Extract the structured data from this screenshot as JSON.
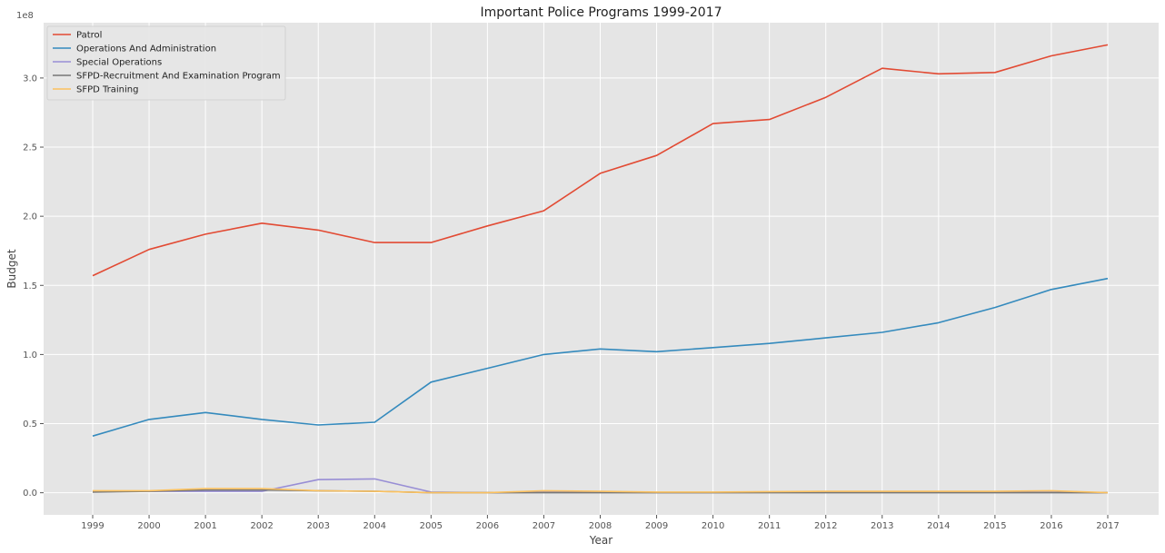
{
  "chart_data": {
    "type": "line",
    "title": "Important Police Programs 1999-2017",
    "xlabel": "Year",
    "ylabel": "Budget",
    "y_offset_label": "1e8",
    "x": [
      "1999",
      "2000",
      "2001",
      "2002",
      "2003",
      "2004",
      "2005",
      "2006",
      "2007",
      "2008",
      "2009",
      "2010",
      "2011",
      "2012",
      "2013",
      "2014",
      "2015",
      "2016",
      "2017"
    ],
    "y_ticks": [
      0,
      50000000,
      100000000,
      150000000,
      200000000,
      250000000,
      300000000
    ],
    "y_tick_labels": [
      "0.0",
      "0.5",
      "1.0",
      "1.5",
      "2.0",
      "2.5",
      "3.0"
    ],
    "ylim": [
      -16000000,
      340000000
    ],
    "grid": true,
    "legend_position": "top-left",
    "series": [
      {
        "name": "Patrol",
        "color": "#E24A33",
        "values": [
          157000000,
          176000000,
          187000000,
          195000000,
          190000000,
          181000000,
          181000000,
          193000000,
          204000000,
          231000000,
          244000000,
          267000000,
          270000000,
          286000000,
          307000000,
          303000000,
          304000000,
          316000000,
          324000000
        ]
      },
      {
        "name": "Operations And Administration",
        "color": "#348ABD",
        "values": [
          41000000,
          53000000,
          58000000,
          53000000,
          49000000,
          51000000,
          80000000,
          90000000,
          100000000,
          104000000,
          102000000,
          105000000,
          108000000,
          112000000,
          116000000,
          123000000,
          134000000,
          147000000,
          155000000
        ]
      },
      {
        "name": "Special Operations",
        "color": "#988ED5",
        "values": [
          1000000,
          1000000,
          1000000,
          1000000,
          9500000,
          10000000,
          500000,
          0,
          500000,
          300000,
          200000,
          200000,
          300000,
          300000,
          300000,
          300000,
          300000,
          300000,
          0
        ]
      },
      {
        "name": "SFPD-Recruitment And Examination Program",
        "color": "#777777",
        "values": [
          500000,
          1000000,
          2000000,
          2000000,
          1500000,
          1000000,
          0,
          0,
          0,
          0,
          0,
          0,
          0,
          0,
          0,
          0,
          0,
          0,
          0
        ]
      },
      {
        "name": "SFPD Training",
        "color": "#FBC15E",
        "values": [
          1500000,
          1500000,
          3000000,
          3000000,
          1500000,
          1000000,
          0,
          0,
          1500000,
          1000000,
          500000,
          500000,
          800000,
          1000000,
          1000000,
          1000000,
          1000000,
          1500000,
          0
        ]
      }
    ]
  }
}
